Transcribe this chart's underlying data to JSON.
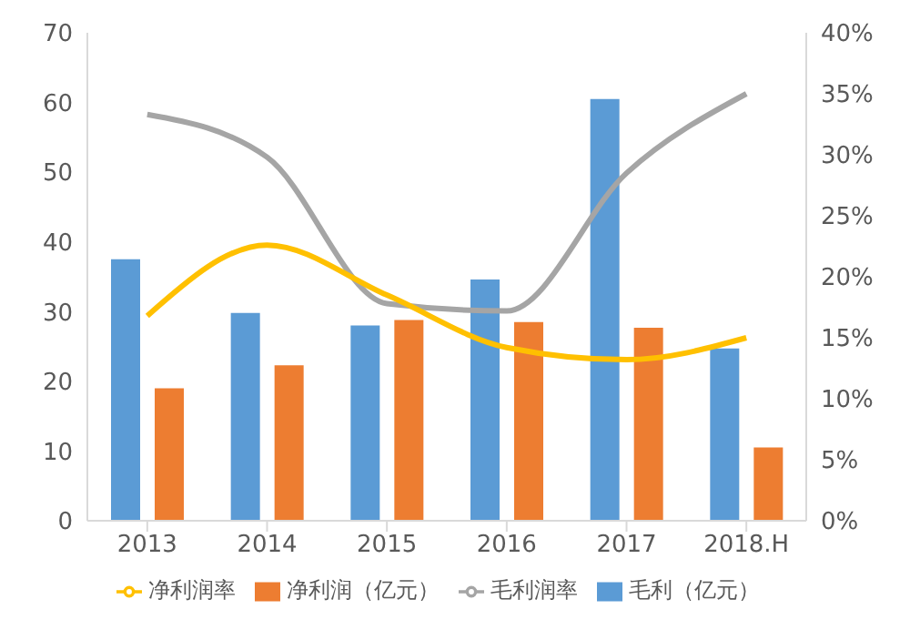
{
  "chart_data": {
    "type": "bar",
    "categories": [
      "2013",
      "2014",
      "2015",
      "2016",
      "2017",
      "2018.H"
    ],
    "series": [
      {
        "name": "毛利（亿元）",
        "color": "#5b9bd5",
        "values": [
          37.5,
          29.8,
          28,
          34.6,
          60.5,
          24.7
        ]
      },
      {
        "name": "净利润（亿元）",
        "color": "#ed7d31",
        "values": [
          19,
          22.3,
          28.8,
          28.5,
          27.7,
          10.5
        ]
      },
      {
        "name": "毛利润率",
        "type": "line",
        "axis": "y2",
        "color": "#a5a5a5",
        "values": [
          33.3,
          29.8,
          17.8,
          17.2,
          28.5,
          35
        ]
      },
      {
        "name": "净利润率",
        "type": "line",
        "axis": "y2",
        "color": "#ffc000",
        "values": [
          16.8,
          22.6,
          18.5,
          14.2,
          13.2,
          15
        ]
      }
    ],
    "ylim": [
      0,
      70
    ],
    "yticks": [
      0,
      10,
      20,
      30,
      40,
      50,
      60,
      70
    ],
    "y2lim": [
      0,
      40
    ],
    "y2ticks": [
      {
        "value": 0,
        "label": "0%"
      },
      {
        "value": 5,
        "label": "5%"
      },
      {
        "value": 10,
        "label": "10%"
      },
      {
        "value": 15,
        "label": "15%"
      },
      {
        "value": 20,
        "label": "20%"
      },
      {
        "value": 25,
        "label": "25%"
      },
      {
        "value": 30,
        "label": "30%"
      },
      {
        "value": 35,
        "label": "35%"
      },
      {
        "value": 40,
        "label": "40%"
      }
    ],
    "grid": false,
    "legend": "bottom",
    "marker": "none"
  }
}
